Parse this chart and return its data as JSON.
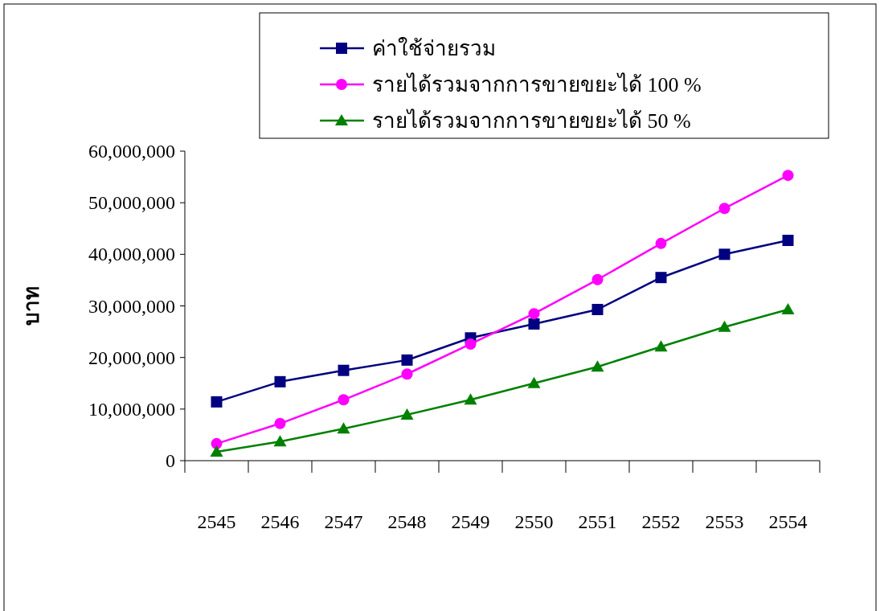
{
  "chart_data": {
    "type": "line",
    "ylabel": "บาท",
    "categories": [
      "2545",
      "2546",
      "2547",
      "2548",
      "2549",
      "2550",
      "2551",
      "2552",
      "2553",
      "2554"
    ],
    "series": [
      {
        "name": "ค่าใช้จ่ายรวม",
        "color": "#000080",
        "marker": "square",
        "values": [
          11400000,
          15300000,
          17500000,
          19500000,
          23800000,
          26500000,
          29300000,
          35500000,
          40000000,
          42700000
        ]
      },
      {
        "name": "รายได้รวมจากการขายขยะได้ 100 %",
        "color": "#ff00ff",
        "marker": "circle",
        "values": [
          3300000,
          7200000,
          11800000,
          16800000,
          22600000,
          28500000,
          35100000,
          42100000,
          48900000,
          55300000
        ]
      },
      {
        "name": "รายได้รวมจากการขายขยะได้ 50 %",
        "color": "#008000",
        "marker": "triangle",
        "values": [
          1700000,
          3700000,
          6200000,
          8900000,
          11800000,
          15000000,
          18200000,
          22100000,
          25900000,
          29300000
        ]
      }
    ],
    "ylim": [
      0,
      60000000
    ],
    "yticks": [
      {
        "value": 0,
        "label": "0"
      },
      {
        "value": 10000000,
        "label": "10,000,000"
      },
      {
        "value": 20000000,
        "label": "20,000,000"
      },
      {
        "value": 30000000,
        "label": "30,000,000"
      },
      {
        "value": 40000000,
        "label": "40,000,000"
      },
      {
        "value": 50000000,
        "label": "50,000,000"
      },
      {
        "value": 60000000,
        "label": "60,000,000"
      }
    ],
    "grid": false,
    "legend": "top",
    "line_style": "solid"
  }
}
